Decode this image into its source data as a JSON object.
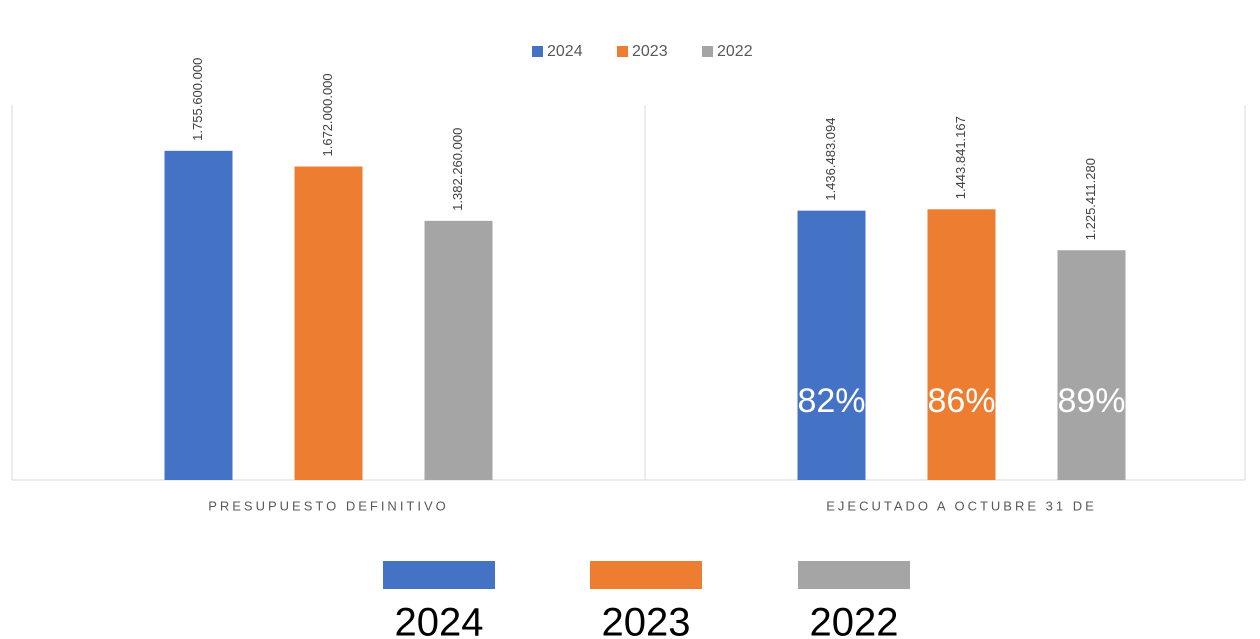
{
  "chart_data": {
    "type": "bar",
    "categories": [
      "PRESUPUESTO DEFINITIVO",
      "EJECUTADO A OCTUBRE 31 DE"
    ],
    "series": [
      {
        "name": "2024",
        "color": "#4472c4",
        "values": [
          1755600000,
          1436483094
        ],
        "value_labels": [
          "1.755.600.000",
          "1.436.483.094"
        ]
      },
      {
        "name": "2023",
        "color": "#ed7d31",
        "values": [
          1672000000,
          1443841167
        ],
        "value_labels": [
          "1.672.000.000",
          "1.443.841.167"
        ]
      },
      {
        "name": "2022",
        "color": "#a5a5a5",
        "values": [
          1382260000,
          1225411280
        ],
        "value_labels": [
          "1.382.260.000",
          "1.225.411.280"
        ]
      }
    ],
    "percent_labels": [
      "82%",
      "86%",
      "89%"
    ],
    "ylim": [
      0,
      2000000000
    ],
    "legend": "top"
  }
}
